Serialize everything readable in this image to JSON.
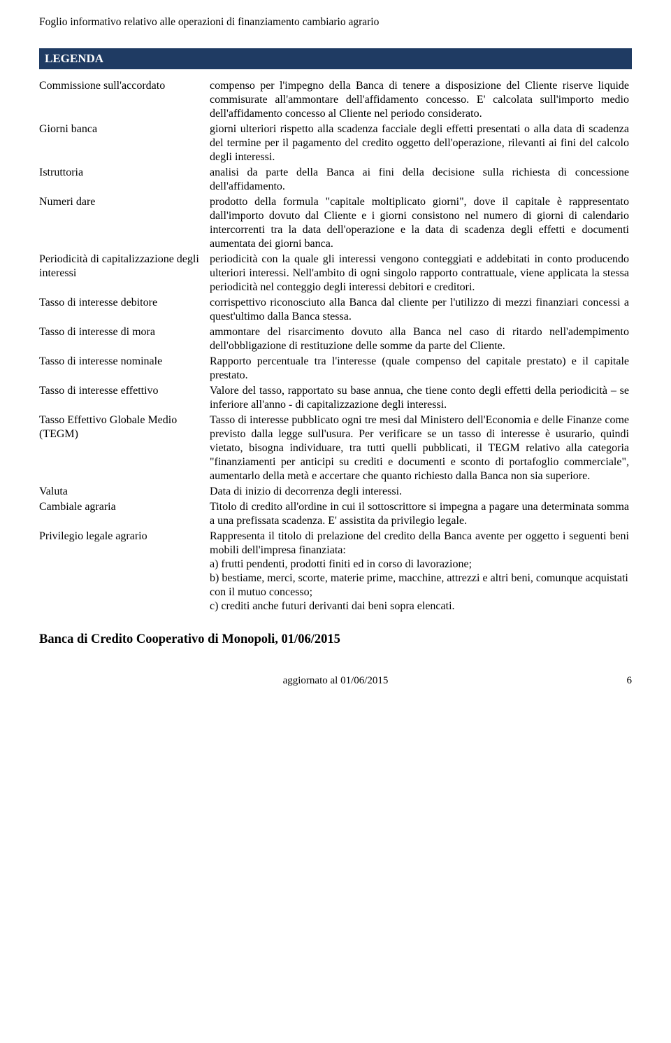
{
  "header": {
    "title": "Foglio informativo relativo alle operazioni di finanziamento cambiario agrario"
  },
  "legenda": {
    "label": "LEGENDA"
  },
  "rows": [
    {
      "term": "Commissione sull'accordato",
      "def": "compenso per l'impegno della Banca di tenere a disposizione del Cliente riserve liquide commisurate all'ammontare dell'affidamento concesso. E' calcolata sull'importo medio dell'affidamento concesso al Cliente nel periodo considerato."
    },
    {
      "term": "Giorni banca",
      "def": "giorni ulteriori rispetto alla scadenza facciale degli effetti presentati o alla data di scadenza del termine per il pagamento del credito oggetto dell'operazione, rilevanti ai fini del calcolo degli interessi."
    },
    {
      "term": "Istruttoria",
      "def": "analisi da parte della Banca ai fini della decisione sulla richiesta di concessione dell'affidamento."
    },
    {
      "term": "Numeri dare",
      "def": "prodotto della formula \"capitale moltiplicato giorni\", dove il capitale è rappresentato dall'importo dovuto dal Cliente e i giorni consistono nel numero di giorni di calendario intercorrenti tra la data dell'operazione e la data di scadenza degli effetti e documenti aumentata dei giorni banca."
    },
    {
      "term": "Periodicità di capitalizzazione degli interessi",
      "def": "periodicità con la quale gli interessi vengono conteggiati e addebitati in conto producendo ulteriori interessi. Nell'ambito di ogni singolo rapporto contrattuale, viene applicata la stessa periodicità nel conteggio degli interessi debitori e creditori."
    },
    {
      "term": "Tasso di interesse debitore",
      "def": "corrispettivo riconosciuto alla Banca dal cliente per l'utilizzo di mezzi finanziari concessi a quest'ultimo dalla Banca stessa."
    },
    {
      "term": "Tasso di interesse di mora",
      "def": "ammontare del risarcimento dovuto alla Banca nel caso di ritardo nell'adempimento dell'obbligazione di restituzione delle somme da parte del Cliente."
    },
    {
      "term": "Tasso di interesse nominale",
      "def": "Rapporto percentuale tra l'interesse (quale compenso del capitale prestato) e il capitale prestato."
    },
    {
      "term": "Tasso di interesse effettivo",
      "def": "Valore del tasso, rapportato su base annua, che tiene conto degli effetti della periodicità – se inferiore all'anno - di capitalizzazione degli interessi."
    },
    {
      "term": "Tasso Effettivo Globale Medio (TEGM)",
      "def": "Tasso di interesse pubblicato ogni tre mesi dal Ministero dell'Economia e delle Finanze come previsto dalla legge sull'usura. Per verificare se un tasso di interesse è usurario, quindi vietato, bisogna individuare, tra tutti quelli pubblicati, il TEGM relativo alla categoria \"finanziamenti per anticipi su crediti e documenti e sconto di portafoglio commerciale\", aumentarlo della metà e accertare che quanto richiesto dalla Banca non sia superiore."
    },
    {
      "term": "Valuta",
      "def": "Data di inizio di decorrenza degli interessi."
    },
    {
      "term": "Cambiale agraria",
      "def": "Titolo di credito all'ordine in cui il sottoscrittore si impegna a pagare una determinata somma a una prefissata scadenza. E' assistita da privilegio legale."
    },
    {
      "term": "Privilegio legale agrario",
      "def": "Rappresenta il titolo di prelazione del credito della Banca avente per oggetto i seguenti beni mobili dell'impresa finanziata:\na) frutti pendenti, prodotti finiti ed in corso di lavorazione;\nb) bestiame, merci, scorte, materie prime, macchine, attrezzi e altri beni, comunque acquistati\ncon il mutuo concesso;\nc) crediti anche futuri derivanti dai beni sopra elencati."
    }
  ],
  "signature": {
    "text": "Banca di Credito Cooperativo di Monopoli,  01/06/2015"
  },
  "footer": {
    "updated": "aggiornato al 01/06/2015",
    "page": "6"
  },
  "style": {
    "bar_bg": "#1f3b63",
    "bar_fg": "#ffffff",
    "page_bg": "#ffffff",
    "text_color": "#000000"
  }
}
